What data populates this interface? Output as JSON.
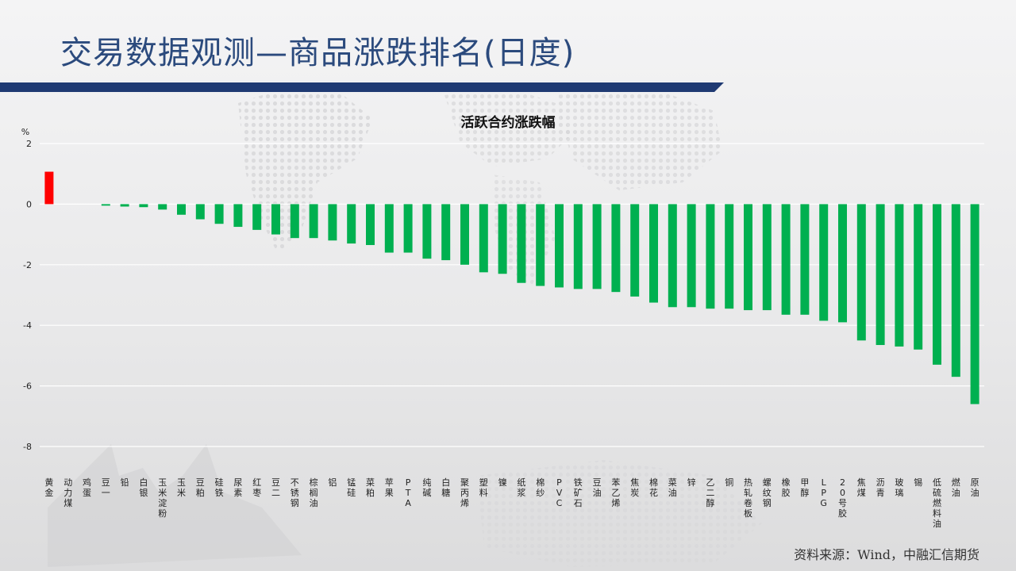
{
  "slide": {
    "title": "交易数据观测—商品涨跌排名(日度)",
    "source": "资料来源：Wind，中融汇信期货"
  },
  "colors": {
    "title": "#2b4a7d",
    "bar_navy": "#1f3a73",
    "up": "#ff0000",
    "down": "#00b050",
    "grid": "#ffffff"
  },
  "chart_data": {
    "type": "bar",
    "title": "活跃合约涨跌幅",
    "ylabel": "%",
    "ylim": [
      -8,
      2
    ],
    "yticks": [
      2,
      0,
      -2,
      -4,
      -6,
      -8
    ],
    "grid": true,
    "legend": "none",
    "categories": [
      "黄金",
      "动力煤",
      "鸡蛋",
      "豆一",
      "铅",
      "白银",
      "玉米淀粉",
      "玉米",
      "豆粕",
      "硅铁",
      "尿素",
      "红枣",
      "豆二",
      "不锈钢",
      "棕榈油",
      "铝",
      "锰硅",
      "菜粕",
      "苹果",
      "PTA",
      "纯碱",
      "白糖",
      "聚丙烯",
      "塑料",
      "镍",
      "纸浆",
      "棉纱",
      "PVC",
      "铁矿石",
      "豆油",
      "苯乙烯",
      "焦炭",
      "棉花",
      "菜油",
      "锌",
      "乙二醇",
      "铜",
      "热轧卷板",
      "螺纹钢",
      "橡胶",
      "甲醇",
      "LPG",
      "20号胶",
      "焦煤",
      "沥青",
      "玻璃",
      "锡",
      "低硫燃料油",
      "燃油",
      "原油"
    ],
    "values": [
      1.07,
      0,
      0,
      -0.05,
      -0.08,
      -0.1,
      -0.18,
      -0.35,
      -0.5,
      -0.65,
      -0.75,
      -0.85,
      -1.0,
      -1.12,
      -1.12,
      -1.2,
      -1.3,
      -1.35,
      -1.6,
      -1.6,
      -1.8,
      -1.85,
      -2.0,
      -2.25,
      -2.3,
      -2.6,
      -2.7,
      -2.75,
      -2.8,
      -2.8,
      -2.9,
      -3.05,
      -3.25,
      -3.4,
      -3.4,
      -3.45,
      -3.45,
      -3.5,
      -3.5,
      -3.65,
      -3.65,
      -3.85,
      -3.9,
      -4.5,
      -4.65,
      -4.7,
      -4.8,
      -5.3,
      -5.7,
      -6.6
    ]
  }
}
